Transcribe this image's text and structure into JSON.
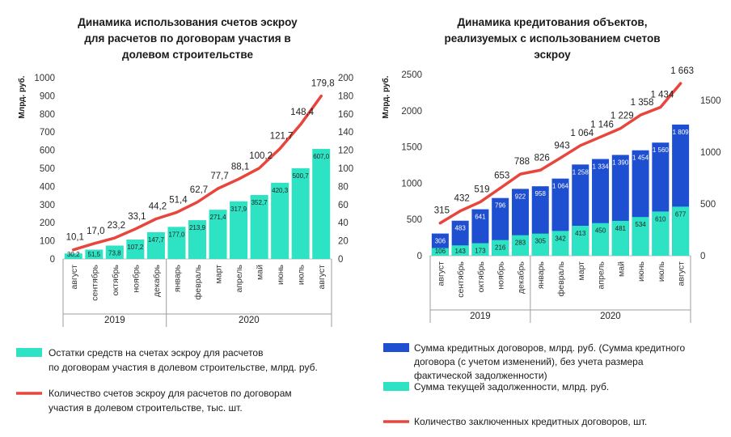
{
  "chart_data": [
    {
      "type": "bar+line",
      "title_lines": [
        "Динамика использования счетов эскроу",
        "для расчетов по договорам участия в",
        "долевом строительстве"
      ],
      "ylabel": "Млрд. руб.",
      "ylim_left": [
        0,
        1000
      ],
      "yticks_left": [
        "0",
        "100",
        "200",
        "300",
        "400",
        "500",
        "600",
        "700",
        "800",
        "900",
        "1000"
      ],
      "ylim_right": [
        0,
        200
      ],
      "yticks_right": [
        "0",
        "20",
        "40",
        "60",
        "80",
        "100",
        "120",
        "140",
        "160",
        "180",
        "200"
      ],
      "categories": [
        "август",
        "сентябрь",
        "октябрь",
        "ноябрь",
        "декабрь",
        "январь",
        "февраль",
        "март",
        "апрель",
        "май",
        "июнь",
        "июль",
        "август"
      ],
      "years": [
        "2019",
        "2020"
      ],
      "series": [
        {
          "name": "Остатки средств на счетах эскроу для расчетов по договорам участия в долевом строительстве, млрд. руб.",
          "type": "bar",
          "axis": "left",
          "color": "#2de3c3",
          "values": [
            30.2,
            51.5,
            73.8,
            107.2,
            147.7,
            177.0,
            213.9,
            271.4,
            317.9,
            352.7,
            420.3,
            500.7,
            607.0
          ],
          "labels": [
            "30,2",
            "51,5",
            "73,8",
            "107,2",
            "147,7",
            "177,0",
            "213,9",
            "271,4",
            "317,9",
            "352,7",
            "420,3",
            "500,7",
            "607,0"
          ]
        },
        {
          "name": "Количество счетов эскроу для расчетов по договорам участия в долевом строительстве, тыс. шт.",
          "type": "line",
          "axis": "right",
          "color": "#e8453c",
          "values": [
            10.1,
            17.0,
            23.2,
            33.1,
            44.2,
            51.4,
            62.7,
            77.7,
            88.1,
            100.2,
            121.7,
            148.4,
            179.8
          ],
          "labels": [
            "10,1",
            "17,0",
            "23,2",
            "33,1",
            "44,2",
            "51,4",
            "62,7",
            "77,7",
            "88,1",
            "100,2",
            "121,7",
            "148,4",
            "179,8"
          ]
        }
      ],
      "legend": [
        {
          "kind": "bar",
          "lines": [
            "Остатки средств на счетах эскроу для расчетов",
            "по договорам участия в долевом строительстве, млрд. руб."
          ]
        },
        {
          "kind": "line",
          "lines": [
            "Количество счетов эскроу для расчетов по договорам",
            "участия в долевом строительстве, тыс. шт."
          ]
        }
      ]
    },
    {
      "type": "stacked-bar+line",
      "title_lines": [
        "Динамика кредитования объектов,",
        "реализуемых с использованием счетов",
        "эскроу"
      ],
      "ylabel": "Млрд. руб.",
      "ylim_left": [
        0,
        2500
      ],
      "yticks_left": [
        "0",
        "500",
        "1000",
        "1500",
        "2000",
        "2500"
      ],
      "ylim_right": [
        0,
        1750
      ],
      "yticks_right": [
        "0",
        "500",
        "1000",
        "1500"
      ],
      "categories": [
        "август",
        "сентябрь",
        "октябрь",
        "ноябрь",
        "декабрь",
        "январь",
        "февраль",
        "март",
        "апрель",
        "май",
        "июнь",
        "июль",
        "август"
      ],
      "years": [
        "2019",
        "2020"
      ],
      "series": [
        {
          "name": "Сумма кредитных договоров, млрд. руб. (Сумма кредитного договора (с учетом изменений), без учета размера фактической задолженности)",
          "type": "bar",
          "axis": "left",
          "color": "#1f4fd1",
          "values": [
            306,
            483,
            641,
            796,
            922,
            958,
            1064,
            1258,
            1334,
            1390,
            1454,
            1560,
            1809
          ],
          "labels": [
            "306",
            "483",
            "641",
            "796",
            "922",
            "958",
            "1 064",
            "1 258",
            "1 334",
            "1 390",
            "1 454",
            "1 560",
            "1 809"
          ]
        },
        {
          "name": "Сумма текущей задолженности, млрд. руб.",
          "type": "bar",
          "axis": "left",
          "color": "#2de3c3",
          "values": [
            106,
            143,
            173,
            216,
            283,
            305,
            342,
            413,
            450,
            481,
            534,
            610,
            677
          ],
          "labels": [
            "106",
            "143",
            "173",
            "216",
            "283",
            "305",
            "342",
            "413",
            "450",
            "481",
            "534",
            "610",
            "677"
          ]
        },
        {
          "name": "Количество заключенных кредитных договоров, шт.",
          "type": "line",
          "axis": "right",
          "color": "#e8453c",
          "values": [
            315,
            432,
            519,
            653,
            788,
            826,
            943,
            1064,
            1146,
            1229,
            1358,
            1434,
            1663
          ],
          "labels": [
            "315",
            "432",
            "519",
            "653",
            "788",
            "826",
            "943",
            "1 064",
            "1 146",
            "1 229",
            "1 358",
            "1 434",
            "1 663"
          ]
        }
      ],
      "legend": [
        {
          "kind": "bar-blue",
          "lines": [
            "Сумма кредитных договоров, млрд. руб. (Сумма кредитного",
            "договора (с учетом изменений), без учета размера",
            "фактической задолженности)"
          ]
        },
        {
          "kind": "bar-teal",
          "lines": [
            "Сумма текущей задолженности, млрд. руб."
          ]
        },
        {
          "kind": "line",
          "lines": [
            "Количество заключенных кредитных договоров, шт."
          ]
        }
      ]
    }
  ]
}
